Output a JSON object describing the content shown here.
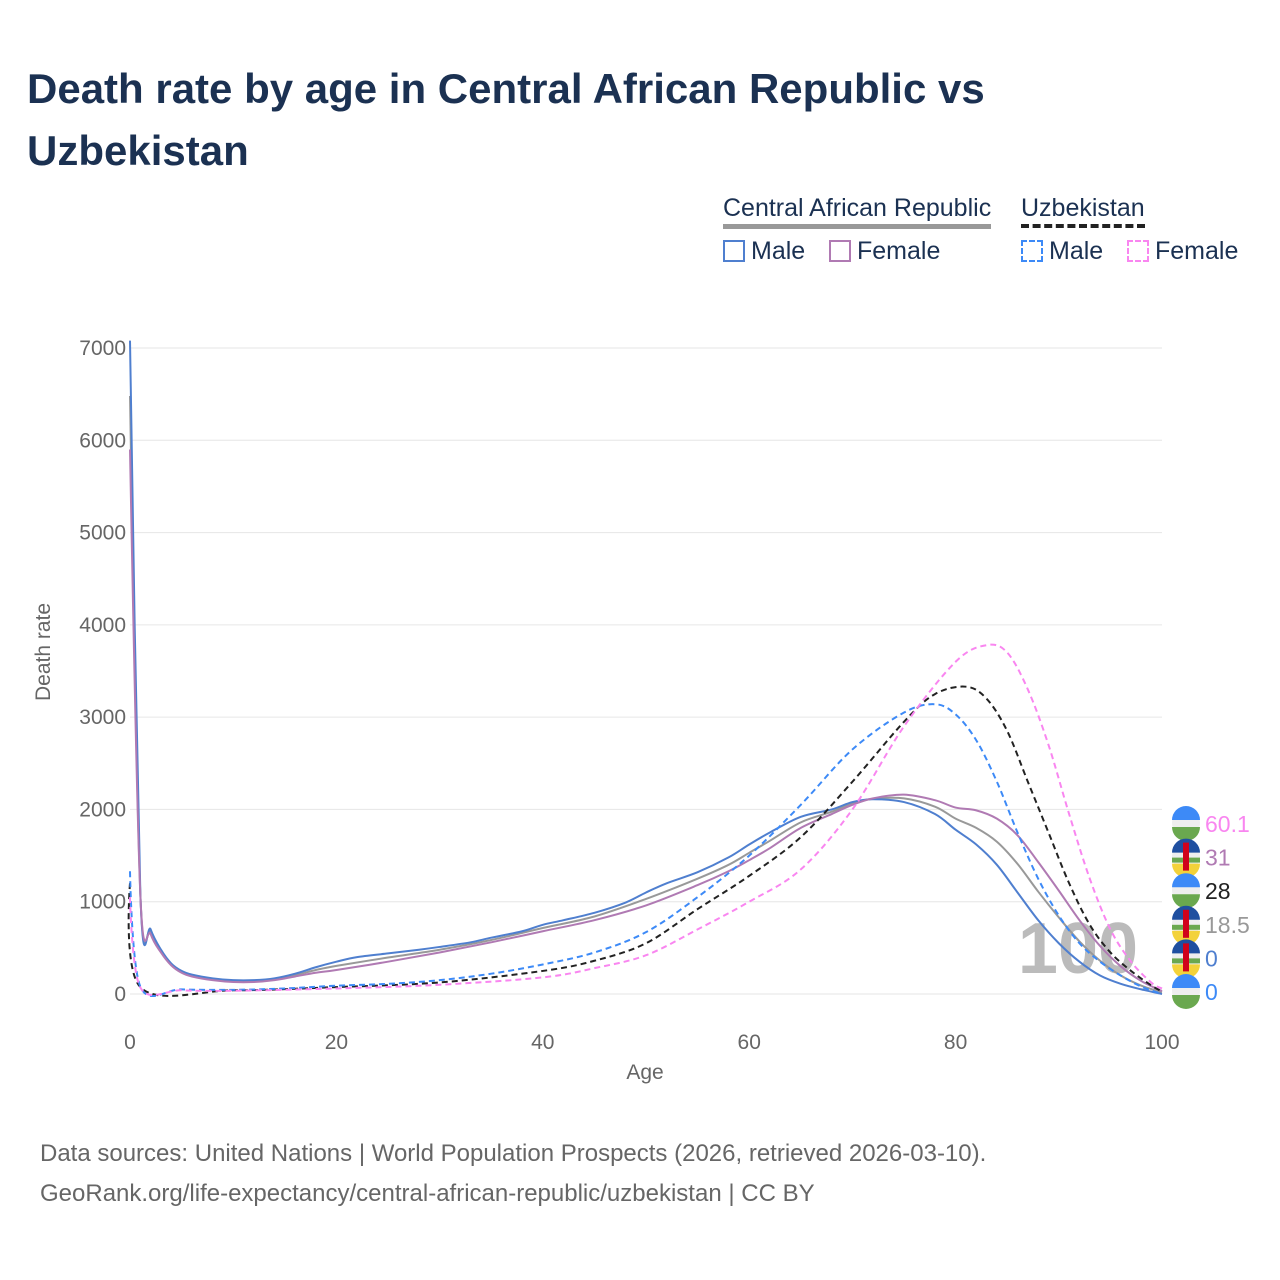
{
  "title": "Death rate by age in Central African Republic vs Uzbekistan",
  "legend": {
    "country1": "Central African Republic",
    "country2": "Uzbekistan",
    "male": "Male",
    "female": "Female"
  },
  "colors": {
    "car_male": "#4f7fcf",
    "car_female": "#b07ab3",
    "car_total": "#999999",
    "uz_male": "#3d8af7",
    "uz_female": "#f986f0",
    "uz_total": "#222222"
  },
  "watermark": "100",
  "sources": [
    "Data sources: United Nations | World Population Prospects (2026, retrieved 2026-03-10).",
    "GeoRank.org/life-expectancy/central-african-republic/uzbekistan | CC BY"
  ],
  "chart_data": {
    "type": "line",
    "xlabel": "Age",
    "ylabel": "Death rate",
    "xlim": [
      0,
      100
    ],
    "ylim": [
      0,
      7000
    ],
    "xticks": [
      0,
      20,
      40,
      60,
      80,
      100
    ],
    "yticks": [
      0,
      1000,
      2000,
      3000,
      4000,
      5000,
      6000,
      7000
    ],
    "grid": true,
    "legend": "top-right",
    "series": [
      {
        "key": "car_total",
        "name": "Central African Republic",
        "dashed": false,
        "end_label": "18.5",
        "flag": "car",
        "points": [
          [
            0,
            6480
          ],
          [
            1,
            1090
          ],
          [
            2,
            680
          ],
          [
            3,
            465
          ],
          [
            4,
            320
          ],
          [
            5,
            240
          ],
          [
            6,
            200
          ],
          [
            8,
            160
          ],
          [
            10,
            140
          ],
          [
            12,
            140
          ],
          [
            14,
            160
          ],
          [
            16,
            205
          ],
          [
            18,
            260
          ],
          [
            20,
            305
          ],
          [
            25,
            395
          ],
          [
            30,
            480
          ],
          [
            35,
            585
          ],
          [
            40,
            715
          ],
          [
            45,
            840
          ],
          [
            50,
            1030
          ],
          [
            55,
            1250
          ],
          [
            58,
            1400
          ],
          [
            60,
            1530
          ],
          [
            62,
            1660
          ],
          [
            65,
            1860
          ],
          [
            68,
            1975
          ],
          [
            70,
            2065
          ],
          [
            72,
            2115
          ],
          [
            75,
            2120
          ],
          [
            78,
            2030
          ],
          [
            80,
            1900
          ],
          [
            82,
            1800
          ],
          [
            84,
            1650
          ],
          [
            86,
            1410
          ],
          [
            88,
            1110
          ],
          [
            90,
            830
          ],
          [
            92,
            570
          ],
          [
            94,
            360
          ],
          [
            96,
            200
          ],
          [
            98,
            90
          ],
          [
            100,
            18.5
          ]
        ]
      },
      {
        "key": "car_male",
        "name": "Male",
        "dashed": false,
        "end_label": "0",
        "flag": "car",
        "points": [
          [
            0,
            7080
          ],
          [
            1,
            1100
          ],
          [
            2,
            700
          ],
          [
            3,
            480
          ],
          [
            4,
            330
          ],
          [
            5,
            250
          ],
          [
            6,
            210
          ],
          [
            8,
            170
          ],
          [
            10,
            150
          ],
          [
            12,
            150
          ],
          [
            14,
            170
          ],
          [
            16,
            220
          ],
          [
            18,
            290
          ],
          [
            20,
            350
          ],
          [
            22,
            400
          ],
          [
            25,
            440
          ],
          [
            28,
            480
          ],
          [
            30,
            510
          ],
          [
            33,
            560
          ],
          [
            35,
            610
          ],
          [
            38,
            680
          ],
          [
            40,
            750
          ],
          [
            42,
            800
          ],
          [
            45,
            880
          ],
          [
            48,
            990
          ],
          [
            50,
            1100
          ],
          [
            52,
            1200
          ],
          [
            55,
            1320
          ],
          [
            58,
            1480
          ],
          [
            60,
            1620
          ],
          [
            62,
            1750
          ],
          [
            65,
            1920
          ],
          [
            68,
            2000
          ],
          [
            70,
            2080
          ],
          [
            72,
            2110
          ],
          [
            75,
            2080
          ],
          [
            78,
            1950
          ],
          [
            80,
            1780
          ],
          [
            82,
            1620
          ],
          [
            84,
            1400
          ],
          [
            86,
            1100
          ],
          [
            88,
            800
          ],
          [
            90,
            550
          ],
          [
            92,
            350
          ],
          [
            94,
            200
          ],
          [
            96,
            110
          ],
          [
            98,
            50
          ],
          [
            100,
            0
          ]
        ]
      },
      {
        "key": "car_female",
        "name": "Female",
        "dashed": false,
        "end_label": "31",
        "flag": "car",
        "points": [
          [
            0,
            5900
          ],
          [
            1,
            1080
          ],
          [
            2,
            650
          ],
          [
            3,
            450
          ],
          [
            4,
            310
          ],
          [
            5,
            230
          ],
          [
            6,
            190
          ],
          [
            8,
            150
          ],
          [
            10,
            130
          ],
          [
            12,
            130
          ],
          [
            14,
            150
          ],
          [
            16,
            190
          ],
          [
            18,
            230
          ],
          [
            20,
            260
          ],
          [
            25,
            350
          ],
          [
            30,
            450
          ],
          [
            35,
            560
          ],
          [
            40,
            680
          ],
          [
            45,
            800
          ],
          [
            50,
            960
          ],
          [
            55,
            1180
          ],
          [
            58,
            1330
          ],
          [
            60,
            1450
          ],
          [
            62,
            1580
          ],
          [
            65,
            1800
          ],
          [
            68,
            1950
          ],
          [
            70,
            2050
          ],
          [
            72,
            2120
          ],
          [
            75,
            2160
          ],
          [
            78,
            2100
          ],
          [
            80,
            2020
          ],
          [
            82,
            1990
          ],
          [
            84,
            1900
          ],
          [
            86,
            1720
          ],
          [
            88,
            1430
          ],
          [
            90,
            1120
          ],
          [
            92,
            800
          ],
          [
            94,
            520
          ],
          [
            96,
            300
          ],
          [
            98,
            140
          ],
          [
            100,
            31
          ]
        ]
      },
      {
        "key": "uz_total",
        "name": "Uzbekistan",
        "dashed": true,
        "end_label": "28",
        "flag": "uz",
        "points": [
          [
            0,
            1200
          ],
          [
            1,
            75
          ],
          [
            10,
            40
          ],
          [
            20,
            75
          ],
          [
            30,
            125
          ],
          [
            40,
            250
          ],
          [
            45,
            360
          ],
          [
            50,
            550
          ],
          [
            55,
            920
          ],
          [
            60,
            1280
          ],
          [
            65,
            1700
          ],
          [
            70,
            2300
          ],
          [
            75,
            2950
          ],
          [
            78,
            3250
          ],
          [
            81,
            3330
          ],
          [
            83,
            3200
          ],
          [
            85,
            2850
          ],
          [
            87,
            2300
          ],
          [
            89,
            1750
          ],
          [
            91,
            1200
          ],
          [
            93,
            750
          ],
          [
            95,
            450
          ],
          [
            97,
            250
          ],
          [
            99,
            90
          ],
          [
            100,
            28
          ]
        ]
      },
      {
        "key": "uz_male",
        "name": "Male",
        "dashed": true,
        "end_label": "0",
        "flag": "uz",
        "points": [
          [
            0,
            1330
          ],
          [
            1,
            80
          ],
          [
            5,
            50
          ],
          [
            10,
            45
          ],
          [
            15,
            60
          ],
          [
            20,
            90
          ],
          [
            25,
            110
          ],
          [
            30,
            150
          ],
          [
            35,
            220
          ],
          [
            40,
            320
          ],
          [
            45,
            450
          ],
          [
            50,
            670
          ],
          [
            55,
            1050
          ],
          [
            60,
            1500
          ],
          [
            65,
            2050
          ],
          [
            70,
            2650
          ],
          [
            75,
            3050
          ],
          [
            78,
            3140
          ],
          [
            80,
            3030
          ],
          [
            82,
            2750
          ],
          [
            84,
            2300
          ],
          [
            86,
            1750
          ],
          [
            88,
            1250
          ],
          [
            90,
            850
          ],
          [
            92,
            550
          ],
          [
            94,
            350
          ],
          [
            96,
            200
          ],
          [
            98,
            80
          ],
          [
            100,
            0
          ]
        ]
      },
      {
        "key": "uz_female",
        "name": "Female",
        "dashed": true,
        "end_label": "60.1",
        "flag": "uz",
        "points": [
          [
            0,
            1050
          ],
          [
            1,
            70
          ],
          [
            5,
            40
          ],
          [
            10,
            35
          ],
          [
            20,
            60
          ],
          [
            30,
            100
          ],
          [
            40,
            180
          ],
          [
            45,
            280
          ],
          [
            50,
            420
          ],
          [
            55,
            700
          ],
          [
            60,
            1000
          ],
          [
            65,
            1350
          ],
          [
            70,
            2000
          ],
          [
            75,
            2900
          ],
          [
            80,
            3600
          ],
          [
            83,
            3780
          ],
          [
            85,
            3700
          ],
          [
            87,
            3300
          ],
          [
            89,
            2700
          ],
          [
            91,
            1950
          ],
          [
            93,
            1250
          ],
          [
            95,
            700
          ],
          [
            97,
            350
          ],
          [
            99,
            120
          ],
          [
            100,
            60.1
          ]
        ]
      }
    ]
  }
}
